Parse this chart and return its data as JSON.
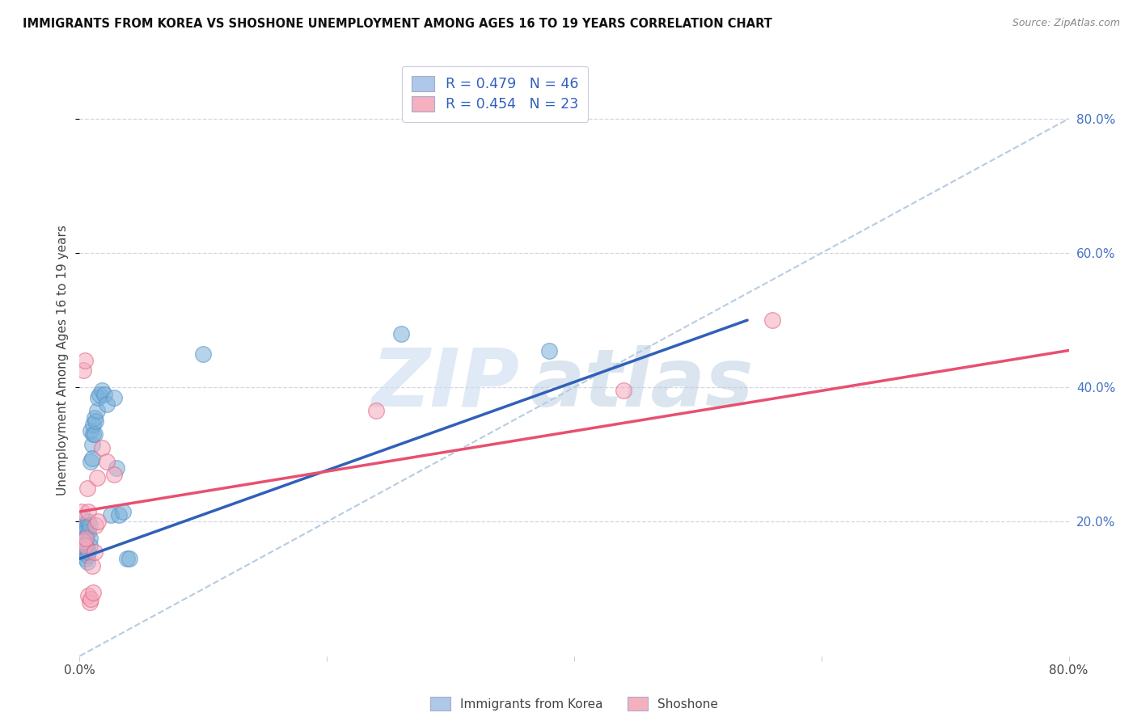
{
  "title": "IMMIGRANTS FROM KOREA VS SHOSHONE UNEMPLOYMENT AMONG AGES 16 TO 19 YEARS CORRELATION CHART",
  "source": "Source: ZipAtlas.com",
  "ylabel": "Unemployment Among Ages 16 to 19 years",
  "right_yticks": [
    "20.0%",
    "40.0%",
    "60.0%",
    "80.0%"
  ],
  "right_ytick_vals": [
    0.2,
    0.4,
    0.6,
    0.8
  ],
  "xlim": [
    0.0,
    0.8
  ],
  "ylim": [
    0.0,
    0.88
  ],
  "legend_r1_text": "R = 0.479",
  "legend_n1_text": "N = 46",
  "legend_r2_text": "R = 0.454",
  "legend_n2_text": "N = 23",
  "legend_color1": "#adc8e8",
  "legend_color2": "#f5b0c0",
  "watermark_zip": "ZIP",
  "watermark_atlas": "atlas",
  "korea_color": "#7ab0d8",
  "korea_edge_color": "#5090c8",
  "shoshone_color": "#f5a8bc",
  "shoshone_edge_color": "#e06080",
  "korea_trend_color": "#3060b8",
  "shoshone_trend_color": "#e85070",
  "dashed_line_color": "#b8cce0",
  "korea_scatter_x": [
    0.002,
    0.002,
    0.003,
    0.003,
    0.003,
    0.004,
    0.004,
    0.004,
    0.005,
    0.005,
    0.005,
    0.005,
    0.006,
    0.006,
    0.006,
    0.007,
    0.007,
    0.007,
    0.008,
    0.008,
    0.008,
    0.009,
    0.009,
    0.01,
    0.01,
    0.011,
    0.011,
    0.012,
    0.012,
    0.013,
    0.014,
    0.015,
    0.016,
    0.018,
    0.02,
    0.022,
    0.025,
    0.028,
    0.03,
    0.032,
    0.035,
    0.038,
    0.04,
    0.1,
    0.26,
    0.38
  ],
  "korea_scatter_y": [
    0.195,
    0.205,
    0.165,
    0.175,
    0.17,
    0.165,
    0.155,
    0.175,
    0.155,
    0.145,
    0.19,
    0.185,
    0.14,
    0.16,
    0.15,
    0.155,
    0.2,
    0.185,
    0.175,
    0.165,
    0.195,
    0.29,
    0.335,
    0.315,
    0.295,
    0.33,
    0.345,
    0.355,
    0.33,
    0.35,
    0.365,
    0.385,
    0.39,
    0.395,
    0.39,
    0.375,
    0.21,
    0.385,
    0.28,
    0.21,
    0.215,
    0.145,
    0.145,
    0.45,
    0.48,
    0.455
  ],
  "shoshone_scatter_x": [
    0.002,
    0.003,
    0.003,
    0.004,
    0.004,
    0.005,
    0.006,
    0.007,
    0.007,
    0.008,
    0.009,
    0.01,
    0.011,
    0.012,
    0.013,
    0.014,
    0.015,
    0.018,
    0.022,
    0.028,
    0.24,
    0.44,
    0.56
  ],
  "shoshone_scatter_y": [
    0.215,
    0.17,
    0.425,
    0.165,
    0.44,
    0.175,
    0.25,
    0.09,
    0.215,
    0.08,
    0.085,
    0.135,
    0.095,
    0.155,
    0.195,
    0.265,
    0.2,
    0.31,
    0.29,
    0.27,
    0.365,
    0.395,
    0.5
  ],
  "korea_trend_x": [
    0.0,
    0.54
  ],
  "korea_trend_y": [
    0.145,
    0.5
  ],
  "shoshone_trend_x": [
    0.0,
    0.8
  ],
  "shoshone_trend_y": [
    0.215,
    0.455
  ],
  "dashed_line_x": [
    0.0,
    0.8
  ],
  "dashed_line_y": [
    0.0,
    0.8
  ],
  "grid_yticks": [
    0.2,
    0.4,
    0.6,
    0.8
  ],
  "grid_color": "#d5d5e5",
  "background_color": "#ffffff",
  "bottom_label1": "Immigrants from Korea",
  "bottom_label2": "Shoshone"
}
